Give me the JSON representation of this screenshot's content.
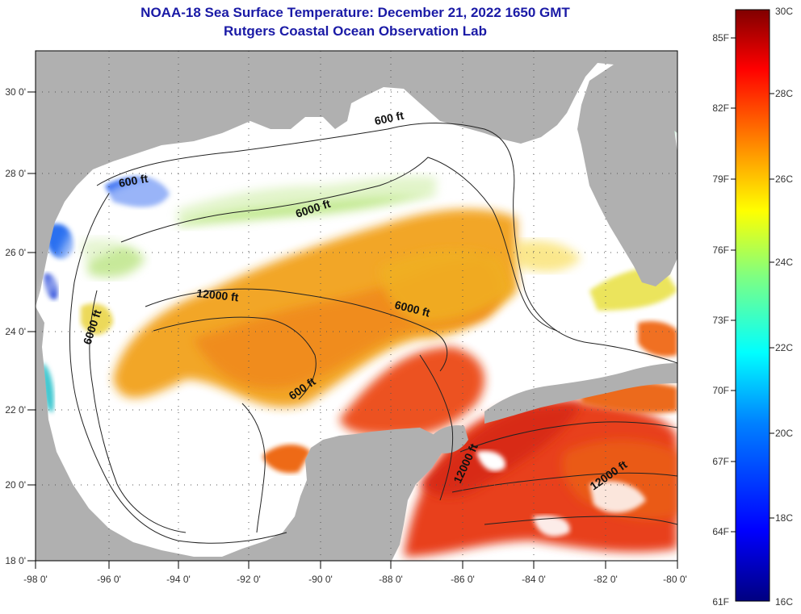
{
  "title": "NOAA-18 Sea Surface Temperature:  December 21, 2022 1650 GMT",
  "subtitle": "Rutgers Coastal Ocean Observation Lab",
  "longitude_labels": [
    "-98 0'",
    "-96 0'",
    "-94 0'",
    "-92 0'",
    "-90 0'",
    "-88 0'",
    "-86 0'",
    "-84 0'",
    "-82 0'",
    "-80 0'"
  ],
  "latitude_labels": [
    "30 0'",
    "28 0'",
    "26 0'",
    "24 0'",
    "22 0'",
    "20 0'",
    "18 0'"
  ],
  "contour_labels": [
    "600 ft",
    "600 ft",
    "6000 ft",
    "12000 ft",
    "6000 ft",
    "6000 ft",
    "600 ft",
    "12000 ft",
    "12000 ft"
  ],
  "colorbar": {
    "fahrenheit": [
      "85F",
      "82F",
      "79F",
      "76F",
      "73F",
      "70F",
      "67F",
      "64F",
      "61F"
    ],
    "celsius": [
      "30C",
      "28C",
      "26C",
      "24C",
      "22C",
      "20C",
      "18C",
      "16C"
    ]
  },
  "colors": {
    "land": "#b0b0b0",
    "ocean_cloud": "#ffffff",
    "title": "#1a1aa6"
  }
}
